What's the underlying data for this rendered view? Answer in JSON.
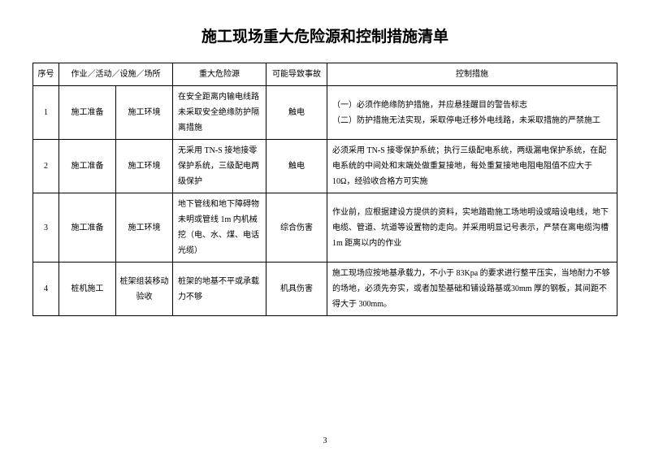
{
  "title": "施工现场重大危险源和控制措施清单",
  "headers": {
    "seq": "序号",
    "activity": "作业／活动／设施／场所",
    "hazard": "重大危险源",
    "accident": "可能导致事故",
    "control": "控制措施"
  },
  "rows": [
    {
      "seq": "1",
      "act1": "施工准备",
      "act2": "施工环境",
      "hazard": "在安全距离内输电线路未采取安全绝缘防护隔离措施",
      "accident": "触电",
      "control": "（一）必须作绝缘防护措施，并应悬挂醒目的警告标志\n（二）防护措施无法实现，采取停电迁移外电线路，未采取措施的严禁施工"
    },
    {
      "seq": "2",
      "act1": "施工准备",
      "act2": "施工环境",
      "hazard": "无采用 TN-S 接地接零保护系统，三级配电两级保护",
      "accident": "触电",
      "control": "必须采用 TN-S 接零保护系统；执行三级配电系统，两级漏电保护系统，在配电系统的中间处和末端处做重复接地，每处重复接地电阻电阻值不应大于 10Ω，经验收合格方可实施"
    },
    {
      "seq": "3",
      "act1": "施工准备",
      "act2": "施工环境",
      "hazard": "地下管线和地下障碍物未明或管线 1m 内机械挖（电、水、煤、电话光缆）",
      "accident": "综合伤害",
      "control": "作业前，应根据建设方提供的资料，实地踏勘施工场地明设或暗设电线，地下电缆、管道、坑道等设置物的走向。并采用明显记号表示，严禁在离电缆沟槽 1m 距离以内的作业"
    },
    {
      "seq": "4",
      "act1": "桩机施工",
      "act2": "桩架组装移动验收",
      "hazard": "桩架的地基不平或承载力不够",
      "accident": "机具伤害",
      "control": "施工现场应按地基承载力，不小于 83Kpa 的要求进行整平压实，当地耐力不够的场地，必须先夯实，或者加垫基础和铺设路基或30mm 厚的钢板，其间距不得大于 300mm。"
    }
  ],
  "pageNumber": "3"
}
